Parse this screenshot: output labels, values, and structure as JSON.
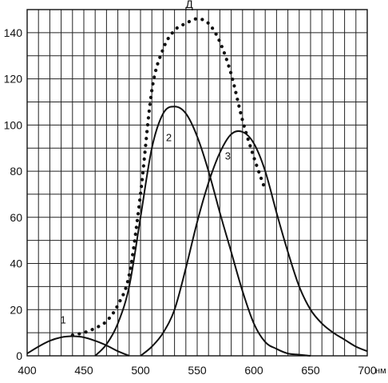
{
  "chart_data": {
    "type": "line",
    "title": "Д",
    "xlabel": "нм",
    "ylabel": "",
    "xlim": [
      400,
      700
    ],
    "ylim": [
      0,
      150
    ],
    "grid": true,
    "x_ticks": [
      400,
      450,
      500,
      550,
      600,
      650,
      700
    ],
    "x_tick_labels": [
      "400",
      "450",
      "500",
      "550",
      "600",
      "650",
      "700"
    ],
    "y_ticks": [
      0,
      20,
      40,
      60,
      80,
      100,
      120,
      140
    ],
    "series": [
      {
        "name": "1",
        "style": "solid",
        "x": [
          400,
          410,
          420,
          430,
          440,
          450,
          460,
          470,
          480,
          490
        ],
        "y": [
          1,
          4,
          6.5,
          8,
          8.5,
          8,
          6.5,
          4.5,
          2,
          0
        ]
      },
      {
        "name": "2",
        "style": "solid",
        "x": [
          460,
          470,
          480,
          490,
          500,
          510,
          520,
          530,
          540,
          550,
          560,
          570,
          580,
          590,
          600,
          610,
          620,
          630,
          640,
          650
        ],
        "y": [
          0,
          5,
          14,
          30,
          60,
          90,
          105,
          108,
          105,
          95,
          80,
          62,
          45,
          28,
          14,
          6,
          3,
          1,
          0.5,
          0
        ]
      },
      {
        "name": "3",
        "style": "solid",
        "x": [
          500,
          510,
          520,
          530,
          540,
          550,
          560,
          570,
          580,
          590,
          600,
          610,
          620,
          630,
          640,
          650,
          660,
          670,
          680,
          690,
          700
        ],
        "y": [
          0,
          4,
          10,
          20,
          38,
          58,
          75,
          88,
          96,
          97,
          92,
          80,
          62,
          45,
          30,
          20,
          14,
          10,
          7,
          4,
          2
        ]
      },
      {
        "name": "",
        "style": "dotted",
        "x": [
          440,
          450,
          460,
          470,
          480,
          490,
          500,
          510,
          520,
          530,
          540,
          550,
          560,
          570,
          580,
          590,
          600,
          610
        ],
        "y": [
          9,
          10,
          12,
          15,
          22,
          35,
          70,
          115,
          133,
          141,
          144,
          146,
          144,
          136,
          122,
          102,
          86,
          72
        ]
      }
    ]
  }
}
